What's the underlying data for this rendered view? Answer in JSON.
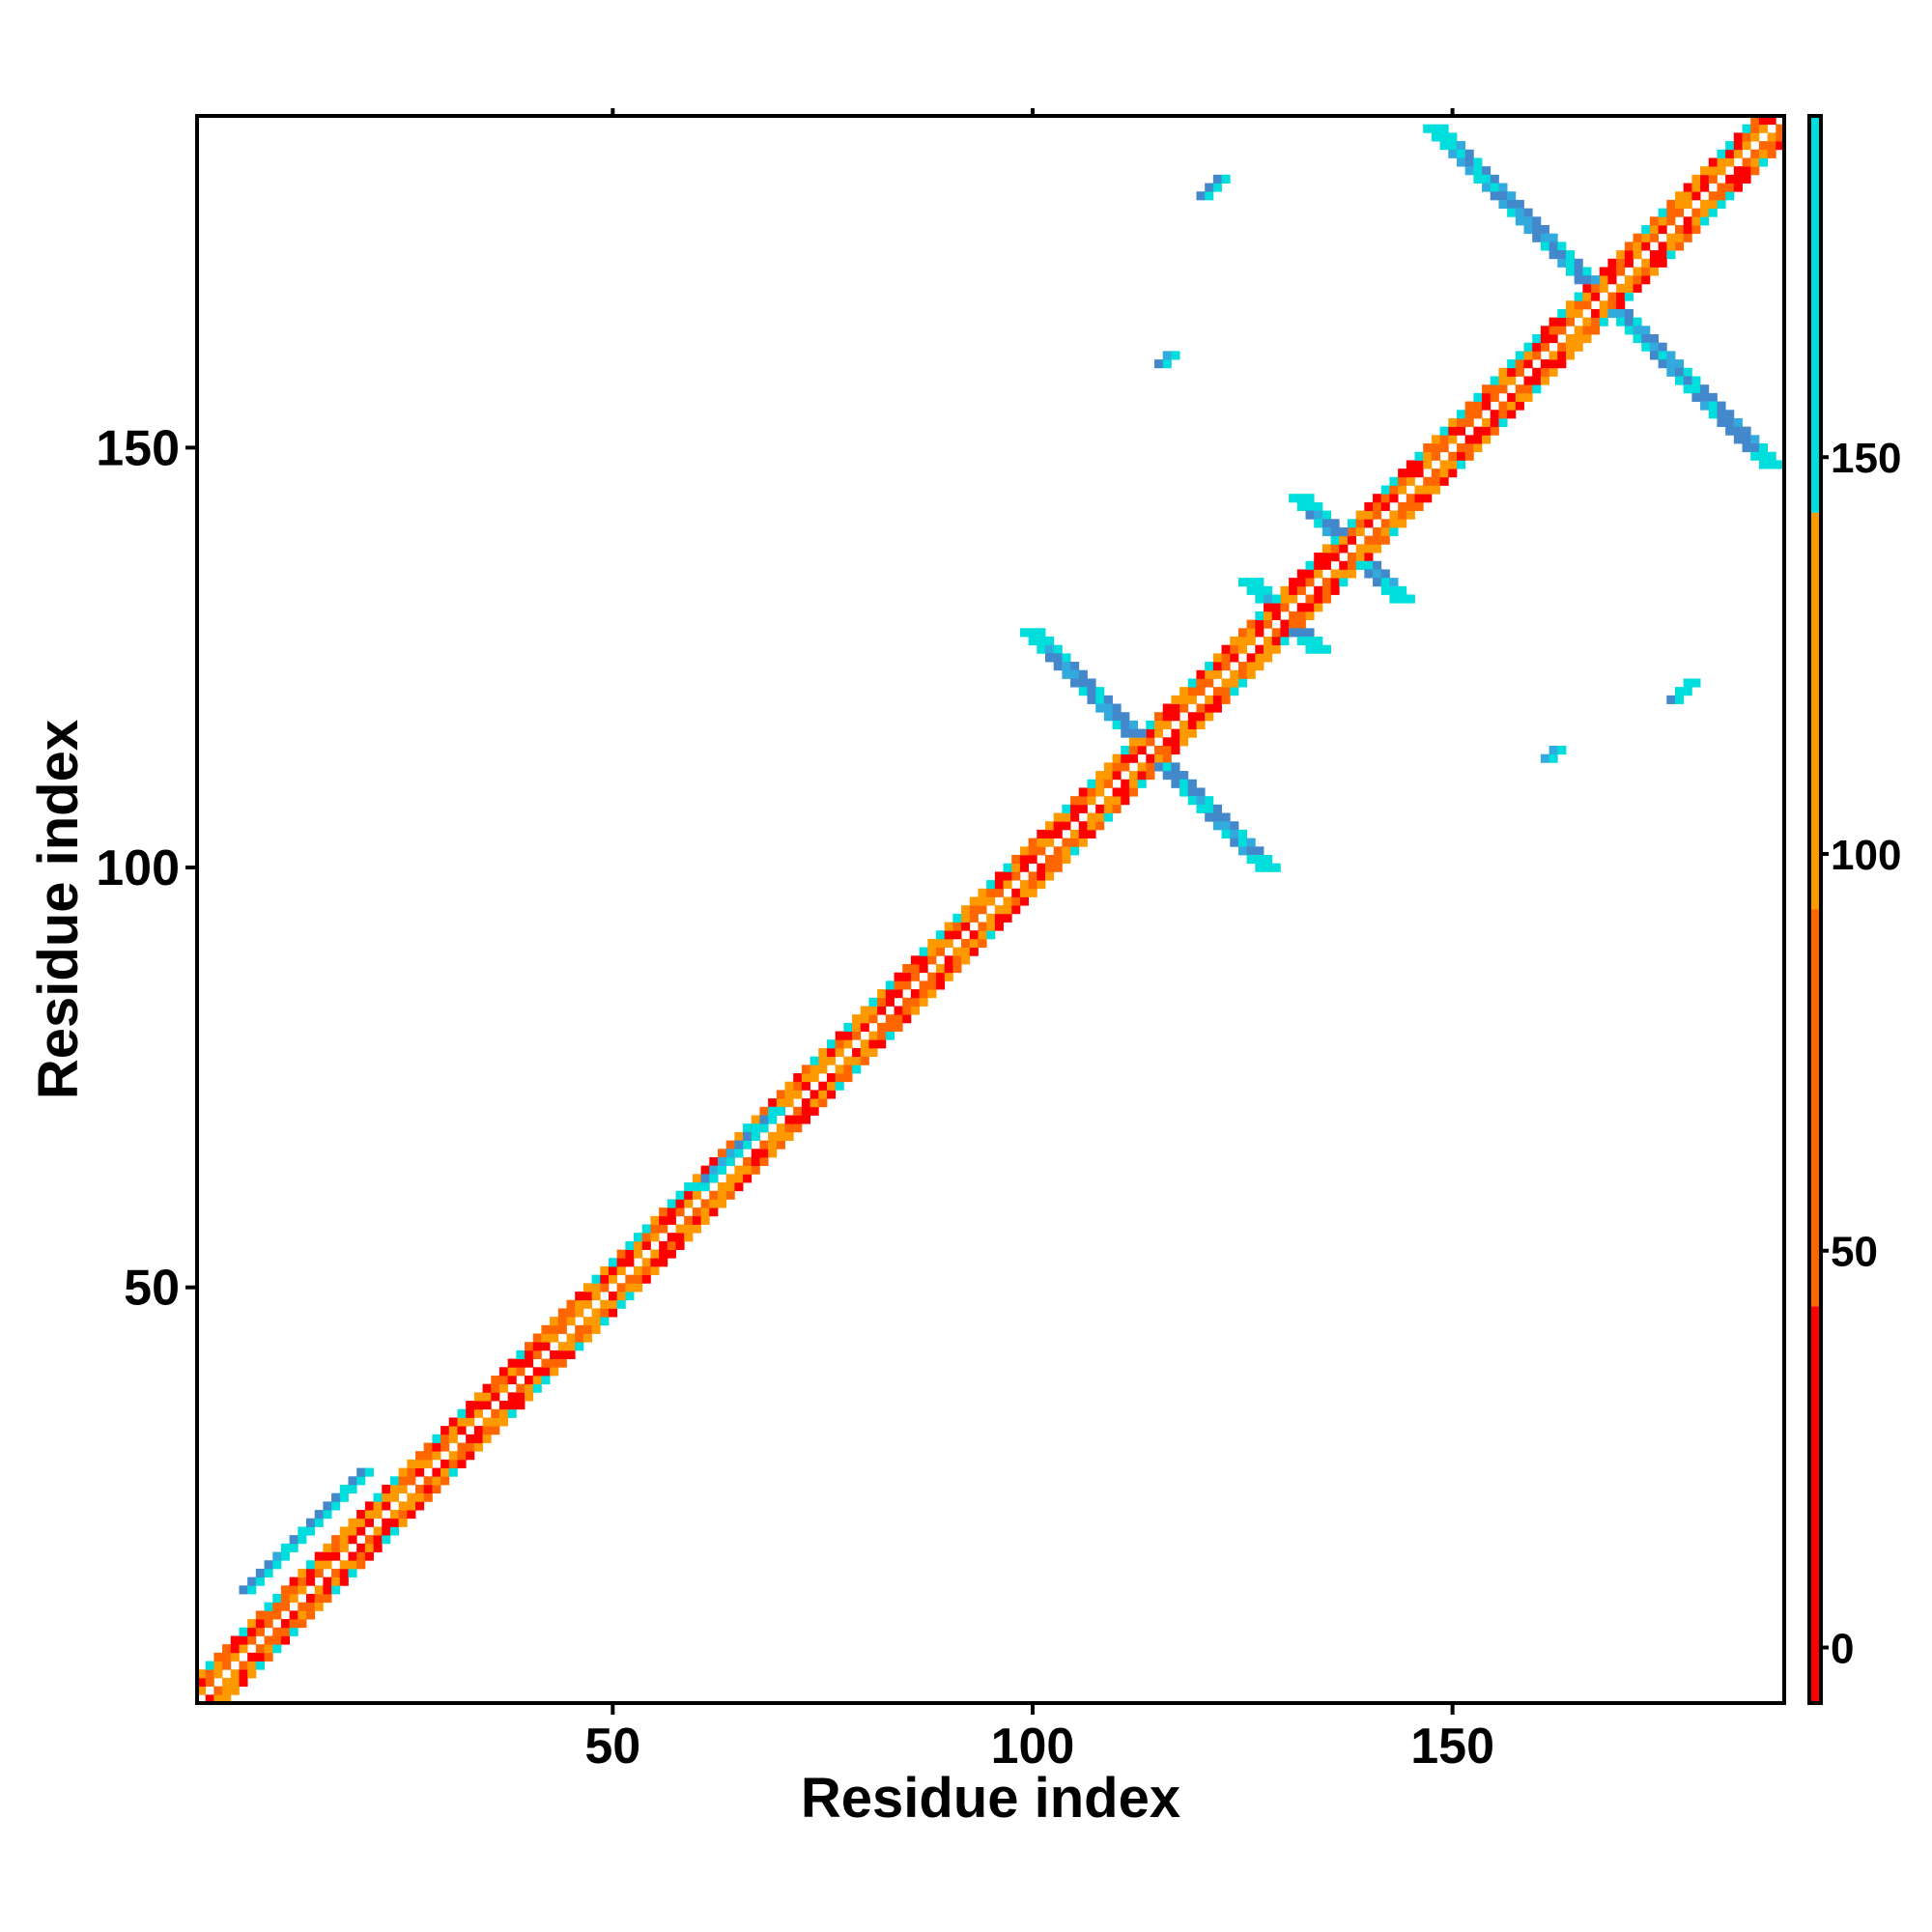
{
  "chart_data": {
    "type": "heatmap",
    "title": "",
    "xlabel": "Residue index",
    "ylabel": "Residue index",
    "xlim": [
      1,
      189
    ],
    "ylim": [
      1,
      189
    ],
    "xticks": [
      50,
      100,
      150
    ],
    "yticks": [
      50,
      100,
      150
    ],
    "colorbar": {
      "ticks": [
        0,
        50,
        100,
        150
      ],
      "range": [
        -7,
        193
      ],
      "bins": [
        {
          "from": -7,
          "to": 43,
          "color": "#ff0000"
        },
        {
          "from": 43,
          "to": 93,
          "color": "#ff6600"
        },
        {
          "from": 93,
          "to": 143,
          "color": "#ff9900"
        },
        {
          "from": 143,
          "to": 293,
          "color": "#00dddd"
        },
        {
          "from": 293,
          "to": 543,
          "color": "#33aadd"
        },
        {
          "from": 543,
          "to": 900,
          "color": "#4488cc"
        },
        {
          "from": 900,
          "to": 1000,
          "color": "#ffffff"
        }
      ]
    },
    "grid": false,
    "legend": "colorbar-right",
    "diagonal": {
      "range": [
        1,
        189
      ],
      "width_cells": 7
    },
    "cross_bands": [
      {
        "center": 114,
        "halfspan": 14,
        "name": "cross-115"
      },
      {
        "center": 168,
        "halfspan": 20,
        "name": "cross-168"
      },
      {
        "center": 130,
        "halfspan": 4,
        "name": "cross-130"
      },
      {
        "center": 138,
        "halfspan": 6,
        "name": "cross-138"
      }
    ],
    "offdiag_blocks": [
      {
        "x": 60,
        "y": 62,
        "len": 10
      },
      {
        "x": 6,
        "y": 14,
        "len": 15
      },
      {
        "x": 120,
        "y": 180,
        "len": 3
      },
      {
        "x": 176,
        "y": 120,
        "len": 3
      },
      {
        "x": 115,
        "y": 160,
        "len": 2
      },
      {
        "x": 161,
        "y": 113,
        "len": 2
      }
    ]
  }
}
